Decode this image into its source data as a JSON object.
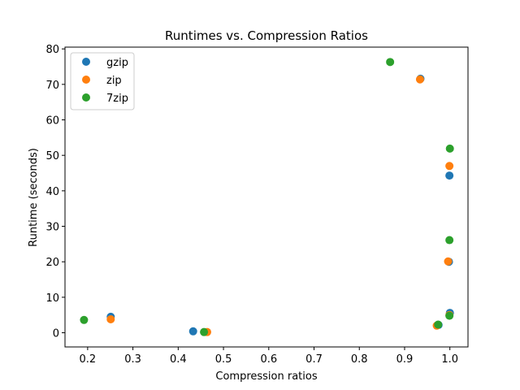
{
  "chart_data": {
    "type": "scatter",
    "title": "Runtimes vs. Compression Ratios",
    "xlabel": "Compression ratios",
    "ylabel": "Runtime (seconds)",
    "xlim": [
      0.15,
      1.04
    ],
    "ylim": [
      -4,
      80.5
    ],
    "xticks": [
      0.2,
      0.3,
      0.4,
      0.5,
      0.6,
      0.7,
      0.8,
      0.9,
      1.0
    ],
    "xtick_labels": [
      "0.2",
      "0.3",
      "0.4",
      "0.5",
      "0.6",
      "0.7",
      "0.8",
      "0.9",
      "1.0"
    ],
    "yticks": [
      0,
      10,
      20,
      30,
      40,
      50,
      60,
      70,
      80
    ],
    "ytick_labels": [
      "0",
      "10",
      "20",
      "30",
      "40",
      "50",
      "60",
      "70",
      "80"
    ],
    "grid": false,
    "legend_position": "top-left",
    "series": [
      {
        "name": "gzip",
        "color": "#1f77b4",
        "points": [
          [
            0.251,
            4.5
          ],
          [
            0.433,
            0.4
          ],
          [
            0.935,
            71.6
          ],
          [
            0.999,
            44.3
          ],
          [
            0.998,
            20.0
          ],
          [
            1.0,
            5.6
          ],
          [
            0.975,
            2.2
          ]
        ]
      },
      {
        "name": "zip",
        "color": "#ff7f0e",
        "points": [
          [
            0.251,
            3.8
          ],
          [
            0.464,
            0.2
          ],
          [
            0.934,
            71.4
          ],
          [
            0.999,
            47.0
          ],
          [
            0.996,
            20.1
          ],
          [
            0.999,
            5.0
          ],
          [
            0.971,
            2.0
          ]
        ]
      },
      {
        "name": "7zip",
        "color": "#2ca02c",
        "points": [
          [
            0.192,
            3.6
          ],
          [
            0.457,
            0.2
          ],
          [
            0.868,
            76.3
          ],
          [
            1.0,
            51.9
          ],
          [
            0.999,
            26.1
          ],
          [
            0.999,
            4.8
          ],
          [
            0.974,
            2.3
          ]
        ]
      }
    ]
  }
}
